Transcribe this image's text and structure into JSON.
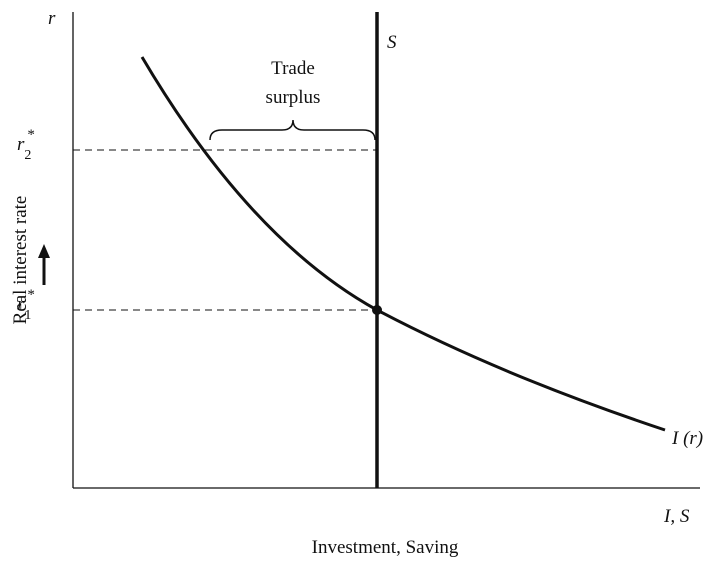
{
  "axes": {
    "y_symbol": "r",
    "x_symbol": "I, S",
    "y_label": "Real interest rate",
    "x_label": "Investment, Saving"
  },
  "curves": {
    "saving": "S",
    "investment": "I (r)"
  },
  "levels": [
    {
      "base": "r",
      "sub": "2",
      "sup": "*"
    },
    {
      "base": "r",
      "sub": "1",
      "sup": "*"
    }
  ],
  "annotation": [
    "Trade",
    "surplus"
  ]
}
